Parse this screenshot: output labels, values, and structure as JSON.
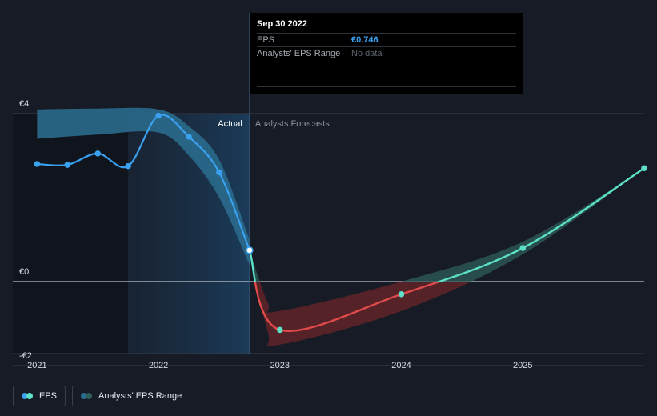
{
  "tooltip": {
    "date": "Sep 30 2022",
    "rows": [
      {
        "label": "EPS",
        "value": "€0.746"
      },
      {
        "label": "Analysts' EPS Range",
        "value": "No data"
      }
    ]
  },
  "legend": [
    {
      "label": "EPS",
      "colors": [
        "#3aa0f0",
        "#5ce0c8"
      ]
    },
    {
      "label": "Analysts' EPS Range",
      "colors": [
        "#2a6a8c",
        "#2f5d5a"
      ]
    }
  ],
  "chart_data": {
    "type": "line",
    "y_tick_labels": [
      "€4",
      "€0",
      "-€2"
    ],
    "y_ticks": [
      4,
      0,
      -2
    ],
    "x_tick_labels": [
      "2021",
      "2022",
      "2023",
      "2024",
      "2025"
    ],
    "x_ticks": [
      2021,
      2022,
      2023,
      2024,
      2025
    ],
    "xlim": [
      2020.8,
      2026.0
    ],
    "ylim": [
      -2.0,
      4.0
    ],
    "actual_label": "Actual",
    "forecast_label": "Analysts Forecasts",
    "divider_x": 2022.75,
    "series": [
      {
        "name": "EPS",
        "role": "actual",
        "color": "#3aa0f0",
        "x": [
          2021.0,
          2021.25,
          2021.5,
          2021.75,
          2022.0,
          2022.25,
          2022.5,
          2022.75
        ],
        "y": [
          2.8,
          2.78,
          3.05,
          2.75,
          3.95,
          3.45,
          2.6,
          0.746
        ]
      },
      {
        "name": "EPS",
        "role": "forecast",
        "colors": {
          "negative": "#e04a4a",
          "positive": "#5ce0c8"
        },
        "x": [
          2022.75,
          2023.0,
          2024.0,
          2025.0,
          2026.0
        ],
        "y": [
          0.746,
          -1.15,
          -0.3,
          0.8,
          2.7
        ]
      }
    ],
    "ranges": [
      {
        "name": "Analysts' EPS Range",
        "role": "actual",
        "color": "#2a6a8c",
        "x": [
          2021.0,
          2021.5,
          2022.0,
          2022.25,
          2022.5,
          2022.75
        ],
        "high": [
          4.1,
          4.12,
          4.1,
          3.7,
          2.9,
          1.0
        ],
        "low": [
          3.4,
          3.5,
          3.55,
          3.0,
          2.0,
          0.4
        ]
      },
      {
        "name": "Analysts' EPS Range",
        "role": "forecast",
        "colors": {
          "negative": "#6b2529",
          "positive": "#2f5d5a"
        },
        "x": [
          2022.75,
          2022.9,
          2023.0,
          2024.0,
          2025.0,
          2026.0
        ],
        "high": [
          0.746,
          -0.5,
          -0.7,
          0.0,
          0.95,
          2.7
        ],
        "low": [
          0.746,
          -1.2,
          -1.5,
          -0.7,
          0.65,
          2.7
        ]
      }
    ]
  }
}
